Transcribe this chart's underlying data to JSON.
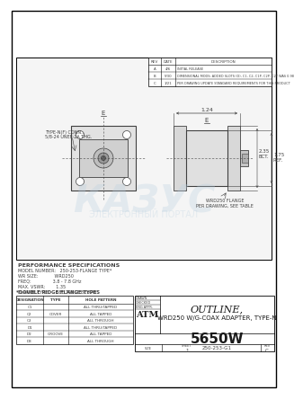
{
  "title": "OUTLINE,",
  "subtitle": "WRD250 W/G-COAX ADAPTER, TYPE-N",
  "part_number": "5650W",
  "doc_number": "250-253-G1",
  "revision": "C",
  "bg_color": "#ffffff",
  "border_color": "#000000",
  "drawing_color": "#404040",
  "performance_specs": [
    "PERFORMANCE SPECIFICATIONS",
    "MODEL NUMBER:   250-253-FLANGE TYPE*",
    "WR SIZE:            WRD250",
    "FREQ:                3.8 - 7.8 GHz",
    "MAX. VSWR:        1.35",
    "FLANGE TYPE:     SEE TABLE BELOW"
  ],
  "revision_block": [
    [
      "A",
      "4/6",
      "INITIAL RELEASE"
    ],
    [
      "B",
      "5/30",
      "DIMENSIONAL MODS: ADDED SLOTS (D), C1, C2, C1P, C2P, C2T WAS 0.98"
    ],
    [
      "C",
      "1/21",
      "PER DRAWING UPDATE STANDARD REQUIREMENTS FOR THIS PRODUCT"
    ]
  ],
  "flange_table_title": "*DOUBLE RIDGE FLANGE TYPES",
  "flange_table_headers": [
    "DESIGNATION",
    "TYPE",
    "HOLE PATTERN"
  ],
  "flange_table_rows": [
    [
      "C1",
      "",
      "ALL THRU/TAPPED"
    ],
    [
      "C2",
      "COVER",
      "ALL TAPPED"
    ],
    [
      "C3",
      "",
      "ALL THROUGH"
    ],
    [
      "D1",
      "",
      "ALL THRU/TAPPED"
    ],
    [
      "D2",
      "GROOVE",
      "ALL TAPPED"
    ],
    [
      "D3",
      "",
      "ALL THROUGH"
    ]
  ],
  "connector_label1": "TYPE-N(F) CONN.,",
  "connector_label2": "5/8-24 UNEF-2A THG.",
  "flange_label1": "WRD250 FLANGE",
  "flange_label2": "PER DRAWING, SEE TABLE",
  "dim_124": "1.24",
  "dim_175_a": "2.35",
  "dim_175_b": "BCT.",
  "dim_175_c": "1.75",
  "dim_175_d": "REF.",
  "title_block_company": "ATM",
  "sheet": "1",
  "size": "B"
}
